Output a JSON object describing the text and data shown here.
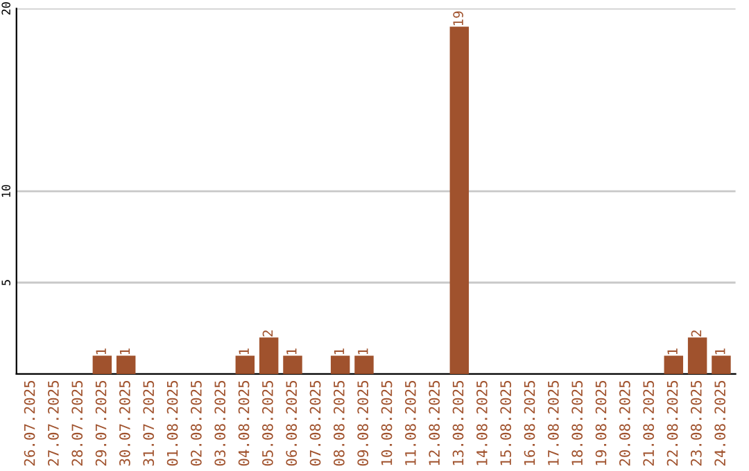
{
  "chart_data": {
    "type": "bar",
    "categories": [
      "26.07.2025",
      "27.07.2025",
      "28.07.2025",
      "29.07.2025",
      "30.07.2025",
      "31.07.2025",
      "01.08.2025",
      "02.08.2025",
      "03.08.2025",
      "04.08.2025",
      "05.08.2025",
      "06.08.2025",
      "07.08.2025",
      "08.08.2025",
      "09.08.2025",
      "10.08.2025",
      "11.08.2025",
      "12.08.2025",
      "13.08.2025",
      "14.08.2025",
      "15.08.2025",
      "16.08.2025",
      "17.08.2025",
      "18.08.2025",
      "19.08.2025",
      "20.08.2025",
      "21.08.2025",
      "22.08.2025",
      "23.08.2025",
      "24.08.2025"
    ],
    "values": [
      0,
      0,
      0,
      1,
      1,
      0,
      0,
      0,
      0,
      1,
      2,
      1,
      0,
      1,
      1,
      0,
      0,
      0,
      19,
      0,
      0,
      0,
      0,
      0,
      0,
      0,
      0,
      1,
      2,
      1
    ],
    "value_labels": [
      null,
      null,
      null,
      "1",
      "1",
      null,
      null,
      null,
      null,
      "1",
      "2",
      "1",
      null,
      "1",
      "1",
      null,
      null,
      null,
      "19",
      null,
      null,
      null,
      null,
      null,
      null,
      null,
      null,
      "1",
      "2",
      "1"
    ],
    "color": "#a0522d",
    "ylim": [
      0,
      20
    ],
    "yticks": [
      5,
      10,
      20
    ],
    "grid": "y"
  }
}
